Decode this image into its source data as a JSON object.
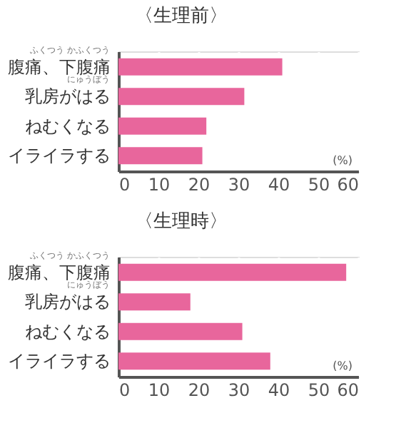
{
  "chart_data": [
    {
      "type": "bar",
      "orientation": "horizontal",
      "title": "〈生理前〉",
      "xlabel": "(%)",
      "categories": [
        "腹痛、下腹痛",
        "乳房がはる",
        "ねむくなる",
        "イライラする"
      ],
      "values": [
        41,
        31.5,
        22,
        21
      ],
      "color": "#e8669c",
      "xlim": [
        0,
        60
      ],
      "xticks": [
        0,
        10,
        20,
        30,
        40,
        50,
        60
      ],
      "grid": "x",
      "annotations": [
        "ふくつう かふくつう",
        "にゅうぼう"
      ]
    },
    {
      "type": "bar",
      "orientation": "horizontal",
      "title": "〈生理時〉",
      "xlabel": "(%)",
      "categories": [
        "腹痛、下腹痛",
        "乳房がはる",
        "ねむくなる",
        "イライラする"
      ],
      "values": [
        57,
        18,
        31,
        38
      ],
      "color": "#e8669c",
      "xlim": [
        0,
        60
      ],
      "xticks": [
        0,
        10,
        20,
        30,
        40,
        50,
        60
      ],
      "grid": "x",
      "annotations": [
        "ふくつう かふくつう",
        "にゅうぼう"
      ]
    }
  ]
}
